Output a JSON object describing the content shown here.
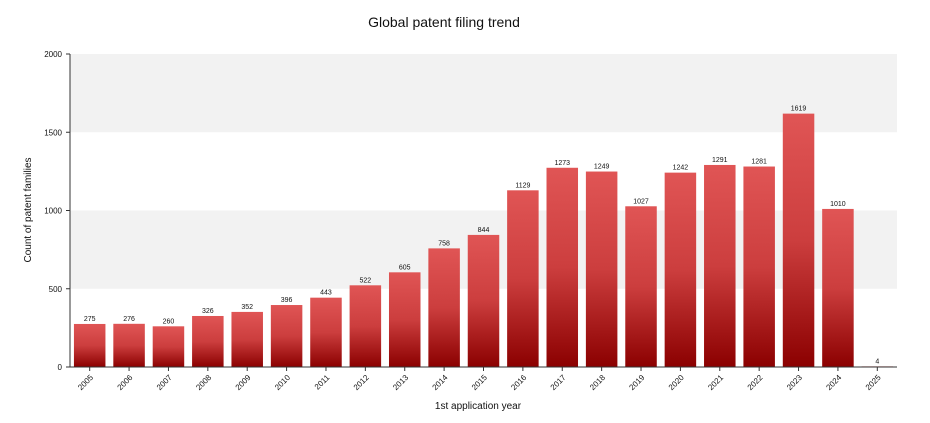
{
  "chart_data": {
    "type": "bar",
    "title": "Global patent filing trend",
    "xlabel": "1st application year",
    "ylabel": "Count of patent families",
    "ylim": [
      0,
      2000
    ],
    "yticks": [
      "0",
      "500",
      "1000",
      "1500",
      "2000"
    ],
    "categories": [
      "2005",
      "2006",
      "2007",
      "2008",
      "2009",
      "2010",
      "2011",
      "2012",
      "2013",
      "2014",
      "2015",
      "2016",
      "2017",
      "2018",
      "2019",
      "2020",
      "2021",
      "2022",
      "2023",
      "2024",
      "2025"
    ],
    "values": [
      275,
      276,
      260,
      326,
      352,
      396,
      443,
      522,
      605,
      758,
      844,
      1129,
      1273,
      1249,
      1027,
      1242,
      1291,
      1281,
      1619,
      1010,
      4
    ],
    "value_labels": [
      "275",
      "276",
      "260",
      "326",
      "352",
      "396",
      "443",
      "522",
      "605",
      "758",
      "844",
      "1129",
      "1273",
      "1249",
      "1027",
      "1242",
      "1291",
      "1281",
      "1619",
      "1010",
      "4"
    ],
    "grid": "alternating horizontal bands",
    "legend": "none",
    "colors": {
      "bar_top": "#e05555",
      "bar_bottom": "#8b0000",
      "band": "#f2f2f2"
    }
  }
}
